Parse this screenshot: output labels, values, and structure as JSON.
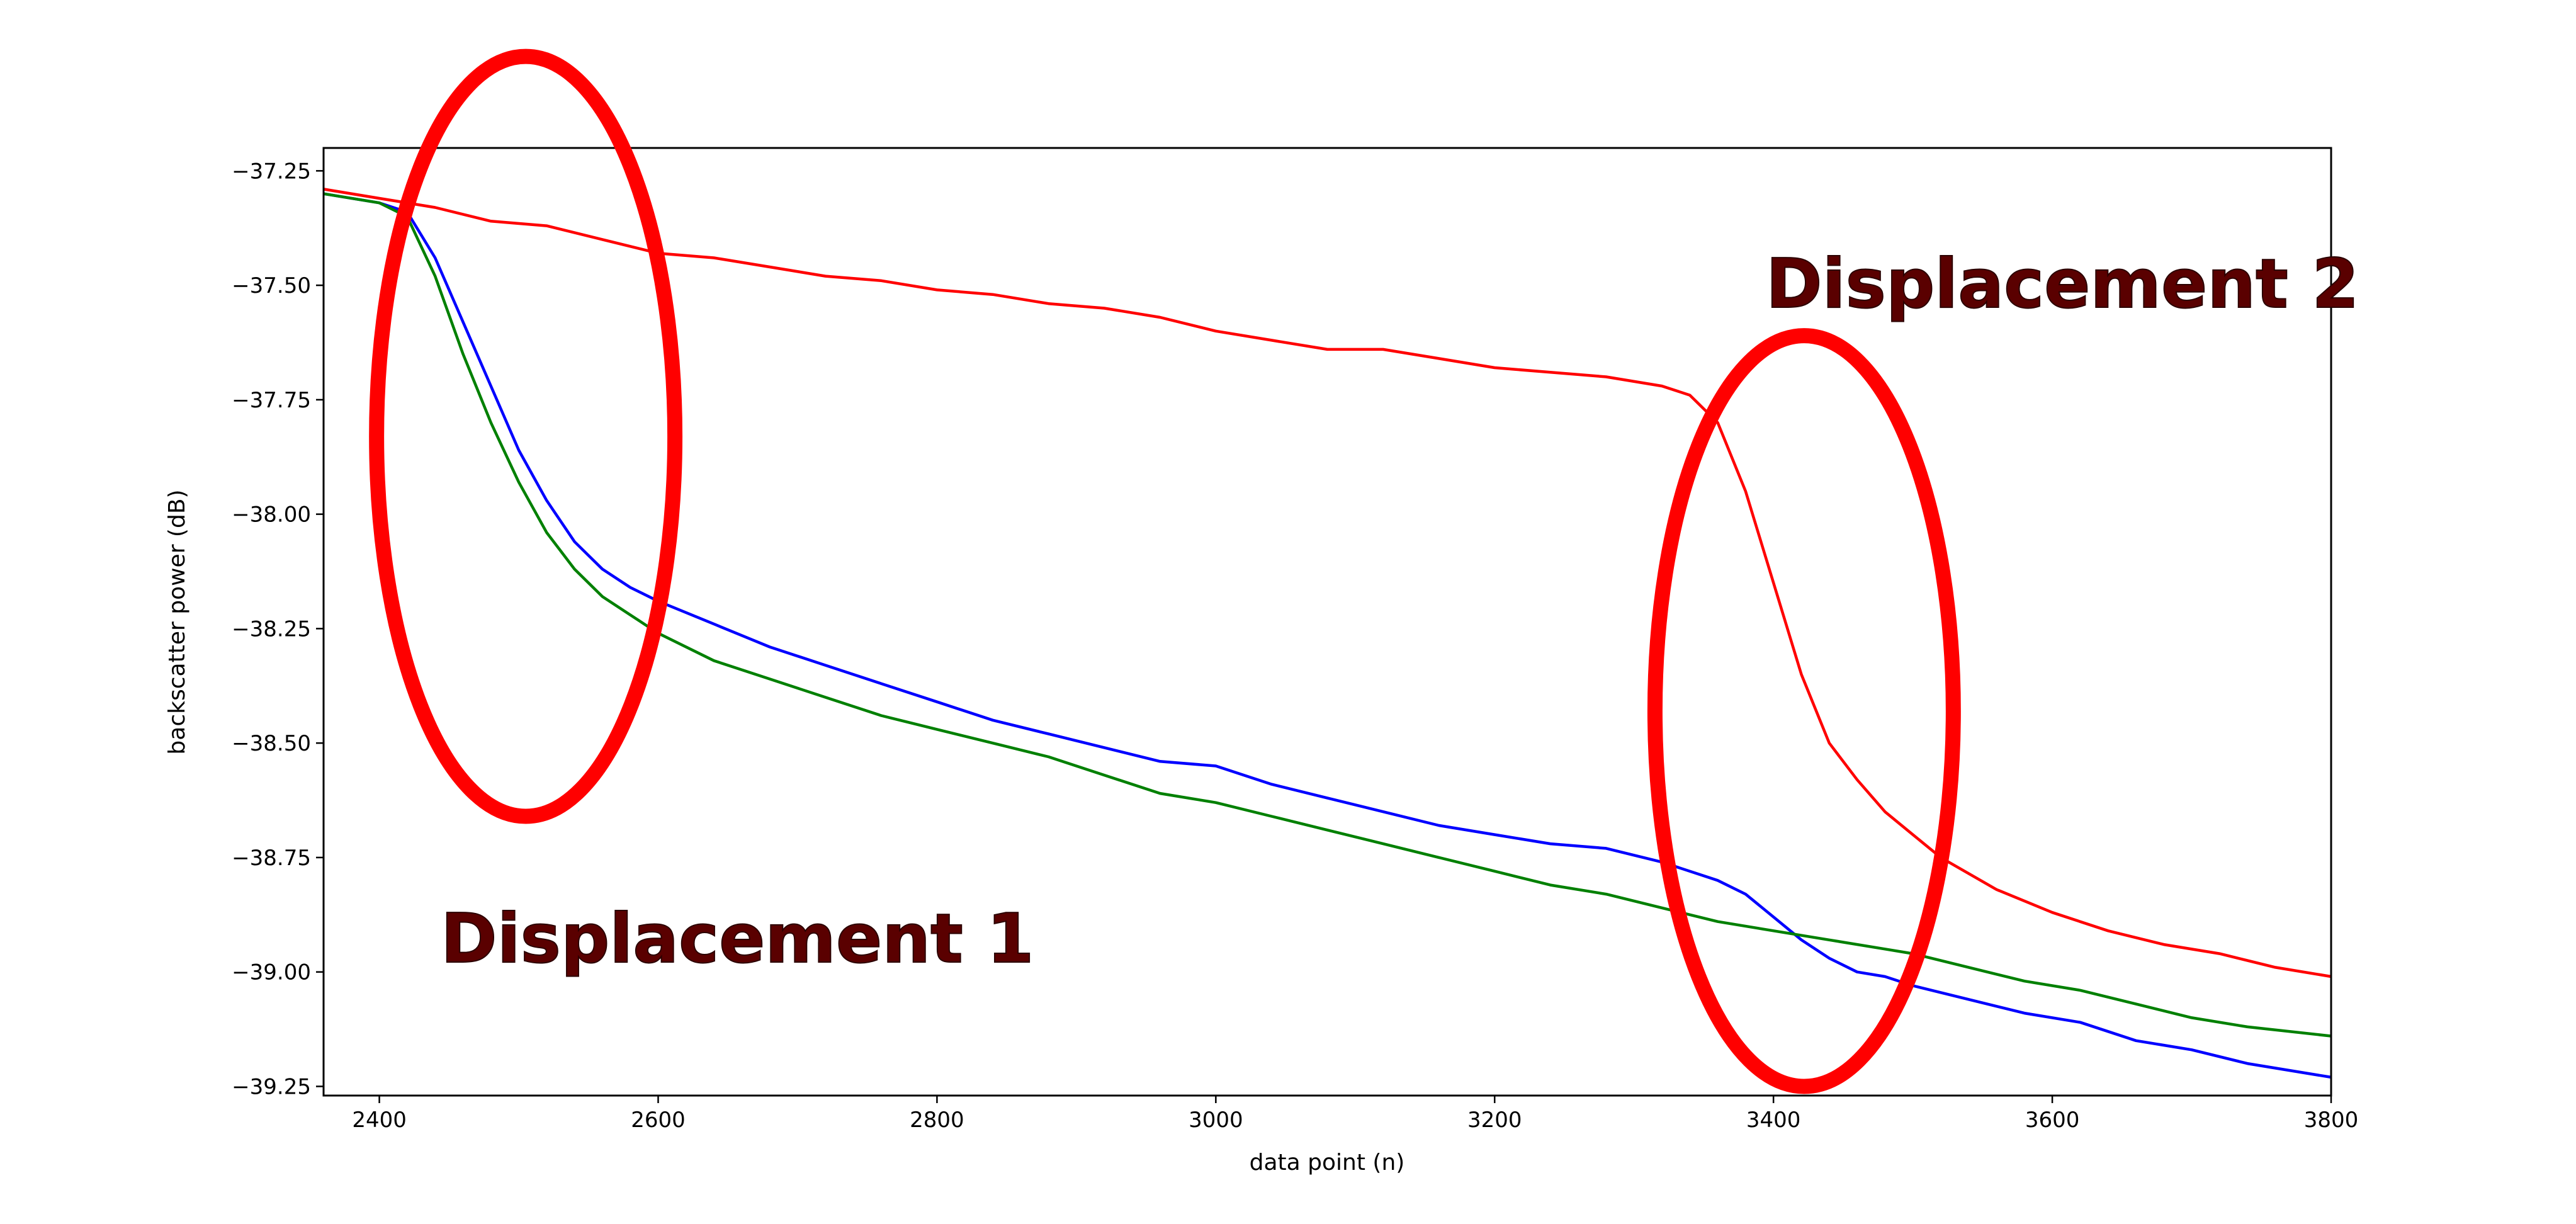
{
  "chart_data": {
    "type": "line",
    "title": "",
    "xlabel": "data point (n)",
    "ylabel": "backscatter power (dB)",
    "xlim": [
      2360,
      3800
    ],
    "ylim": [
      -39.27,
      -37.2
    ],
    "xticks": [
      2400,
      2600,
      2800,
      3000,
      3200,
      3400,
      3600,
      3800
    ],
    "yticks": [
      -37.25,
      -37.5,
      -37.75,
      -38.0,
      -38.25,
      -38.5,
      -38.75,
      -39.0,
      -39.25
    ],
    "xtick_labels": [
      "2400",
      "2600",
      "2800",
      "3000",
      "3200",
      "3400",
      "3600",
      "3800"
    ],
    "ytick_labels": [
      "−37.25",
      "−37.50",
      "−37.75",
      "−38.00",
      "−38.25",
      "−38.50",
      "−38.75",
      "−39.00",
      "−39.25"
    ],
    "grid": false,
    "series": [
      {
        "color": "#ff0000",
        "x": [
          2360,
          2400,
          2440,
          2480,
          2520,
          2560,
          2600,
          2640,
          2680,
          2720,
          2760,
          2800,
          2840,
          2880,
          2920,
          2960,
          3000,
          3040,
          3080,
          3120,
          3160,
          3200,
          3240,
          3280,
          3320,
          3340,
          3360,
          3380,
          3400,
          3420,
          3440,
          3460,
          3480,
          3500,
          3520,
          3560,
          3600,
          3640,
          3680,
          3720,
          3760,
          3800
        ],
        "y": [
          -37.29,
          -37.31,
          -37.33,
          -37.36,
          -37.37,
          -37.4,
          -37.43,
          -37.44,
          -37.46,
          -37.48,
          -37.49,
          -37.51,
          -37.52,
          -37.54,
          -37.55,
          -37.57,
          -37.6,
          -37.62,
          -37.64,
          -37.64,
          -37.66,
          -37.68,
          -37.69,
          -37.7,
          -37.72,
          -37.74,
          -37.8,
          -37.95,
          -38.15,
          -38.35,
          -38.5,
          -38.58,
          -38.65,
          -38.7,
          -38.75,
          -38.82,
          -38.87,
          -38.91,
          -38.94,
          -38.96,
          -38.99,
          -39.01
        ]
      },
      {
        "color": "#0000ff",
        "x": [
          2360,
          2400,
          2420,
          2440,
          2460,
          2480,
          2500,
          2520,
          2540,
          2560,
          2580,
          2600,
          2640,
          2680,
          2720,
          2760,
          2800,
          2840,
          2880,
          2920,
          2960,
          3000,
          3040,
          3080,
          3120,
          3160,
          3200,
          3240,
          3280,
          3320,
          3360,
          3380,
          3400,
          3420,
          3440,
          3460,
          3480,
          3500,
          3540,
          3580,
          3620,
          3660,
          3700,
          3740,
          3800
        ],
        "y": [
          -37.3,
          -37.32,
          -37.34,
          -37.44,
          -37.58,
          -37.72,
          -37.86,
          -37.97,
          -38.06,
          -38.12,
          -38.16,
          -38.19,
          -38.24,
          -38.29,
          -38.33,
          -38.37,
          -38.41,
          -38.45,
          -38.48,
          -38.51,
          -38.54,
          -38.55,
          -38.59,
          -38.62,
          -38.65,
          -38.68,
          -38.7,
          -38.72,
          -38.73,
          -38.76,
          -38.8,
          -38.83,
          -38.88,
          -38.93,
          -38.97,
          -39.0,
          -39.01,
          -39.03,
          -39.06,
          -39.09,
          -39.11,
          -39.15,
          -39.17,
          -39.2,
          -39.23
        ]
      },
      {
        "color": "#008000",
        "x": [
          2360,
          2400,
          2420,
          2440,
          2460,
          2480,
          2500,
          2520,
          2540,
          2560,
          2580,
          2600,
          2640,
          2680,
          2720,
          2760,
          2800,
          2840,
          2880,
          2920,
          2960,
          3000,
          3040,
          3080,
          3120,
          3160,
          3200,
          3240,
          3280,
          3320,
          3360,
          3400,
          3440,
          3480,
          3500,
          3540,
          3580,
          3620,
          3660,
          3700,
          3740,
          3800
        ],
        "y": [
          -37.3,
          -37.32,
          -37.35,
          -37.48,
          -37.65,
          -37.8,
          -37.93,
          -38.04,
          -38.12,
          -38.18,
          -38.22,
          -38.26,
          -38.32,
          -38.36,
          -38.4,
          -38.44,
          -38.47,
          -38.5,
          -38.53,
          -38.57,
          -38.61,
          -38.63,
          -38.66,
          -38.69,
          -38.72,
          -38.75,
          -38.78,
          -38.81,
          -38.83,
          -38.86,
          -38.89,
          -38.91,
          -38.93,
          -38.95,
          -38.96,
          -38.99,
          -39.02,
          -39.04,
          -39.07,
          -39.1,
          -39.12,
          -39.14
        ]
      }
    ],
    "annotations": [
      {
        "text": "Displacement 1",
        "color": "#ff0000",
        "center": [
          2505,
          -37.83
        ],
        "radius": [
          107,
          0.83
        ]
      },
      {
        "text": "Displacement 2",
        "color": "#ff0000",
        "center": [
          3422,
          -38.43
        ],
        "radius": [
          107,
          0.82
        ]
      }
    ]
  }
}
